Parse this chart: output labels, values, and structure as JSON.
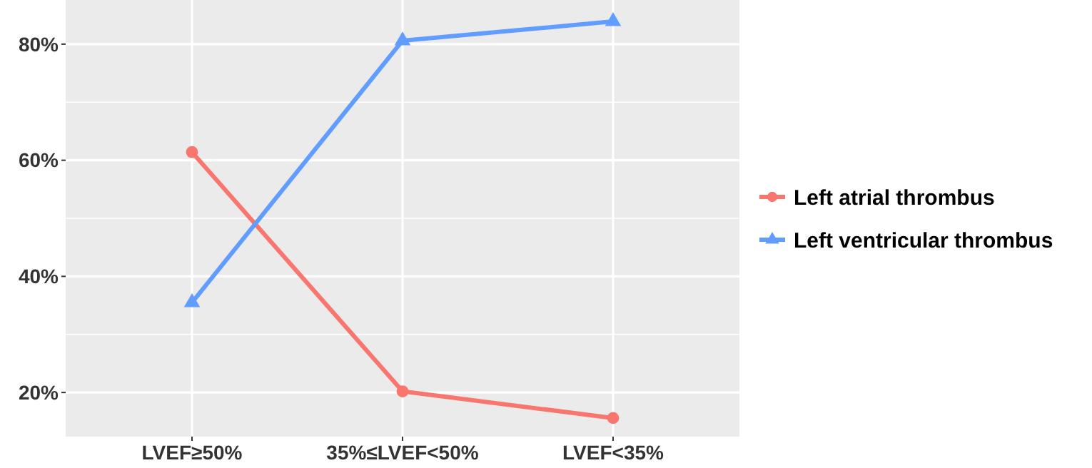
{
  "chart_data": {
    "type": "line",
    "categories": [
      "LVEF≥50%",
      "35%≤LVEF<50%",
      "LVEF<35%"
    ],
    "series": [
      {
        "name": "Left atrial thrombus",
        "color": "#f8766d",
        "marker": "circle",
        "values": [
          61.4,
          20.2,
          15.6
        ]
      },
      {
        "name": "Left ventricular thrombus",
        "color": "#619cff",
        "marker": "triangle",
        "values": [
          35.5,
          80.6,
          83.9
        ]
      }
    ],
    "ylim": [
      12.4,
      87.6
    ],
    "yticks": [
      {
        "value": 20,
        "label": "20%"
      },
      {
        "value": 40,
        "label": "40%"
      },
      {
        "value": 60,
        "label": "60%"
      },
      {
        "value": 80,
        "label": "80%"
      }
    ],
    "grid": true,
    "legend": "right",
    "line_style": "solid"
  }
}
